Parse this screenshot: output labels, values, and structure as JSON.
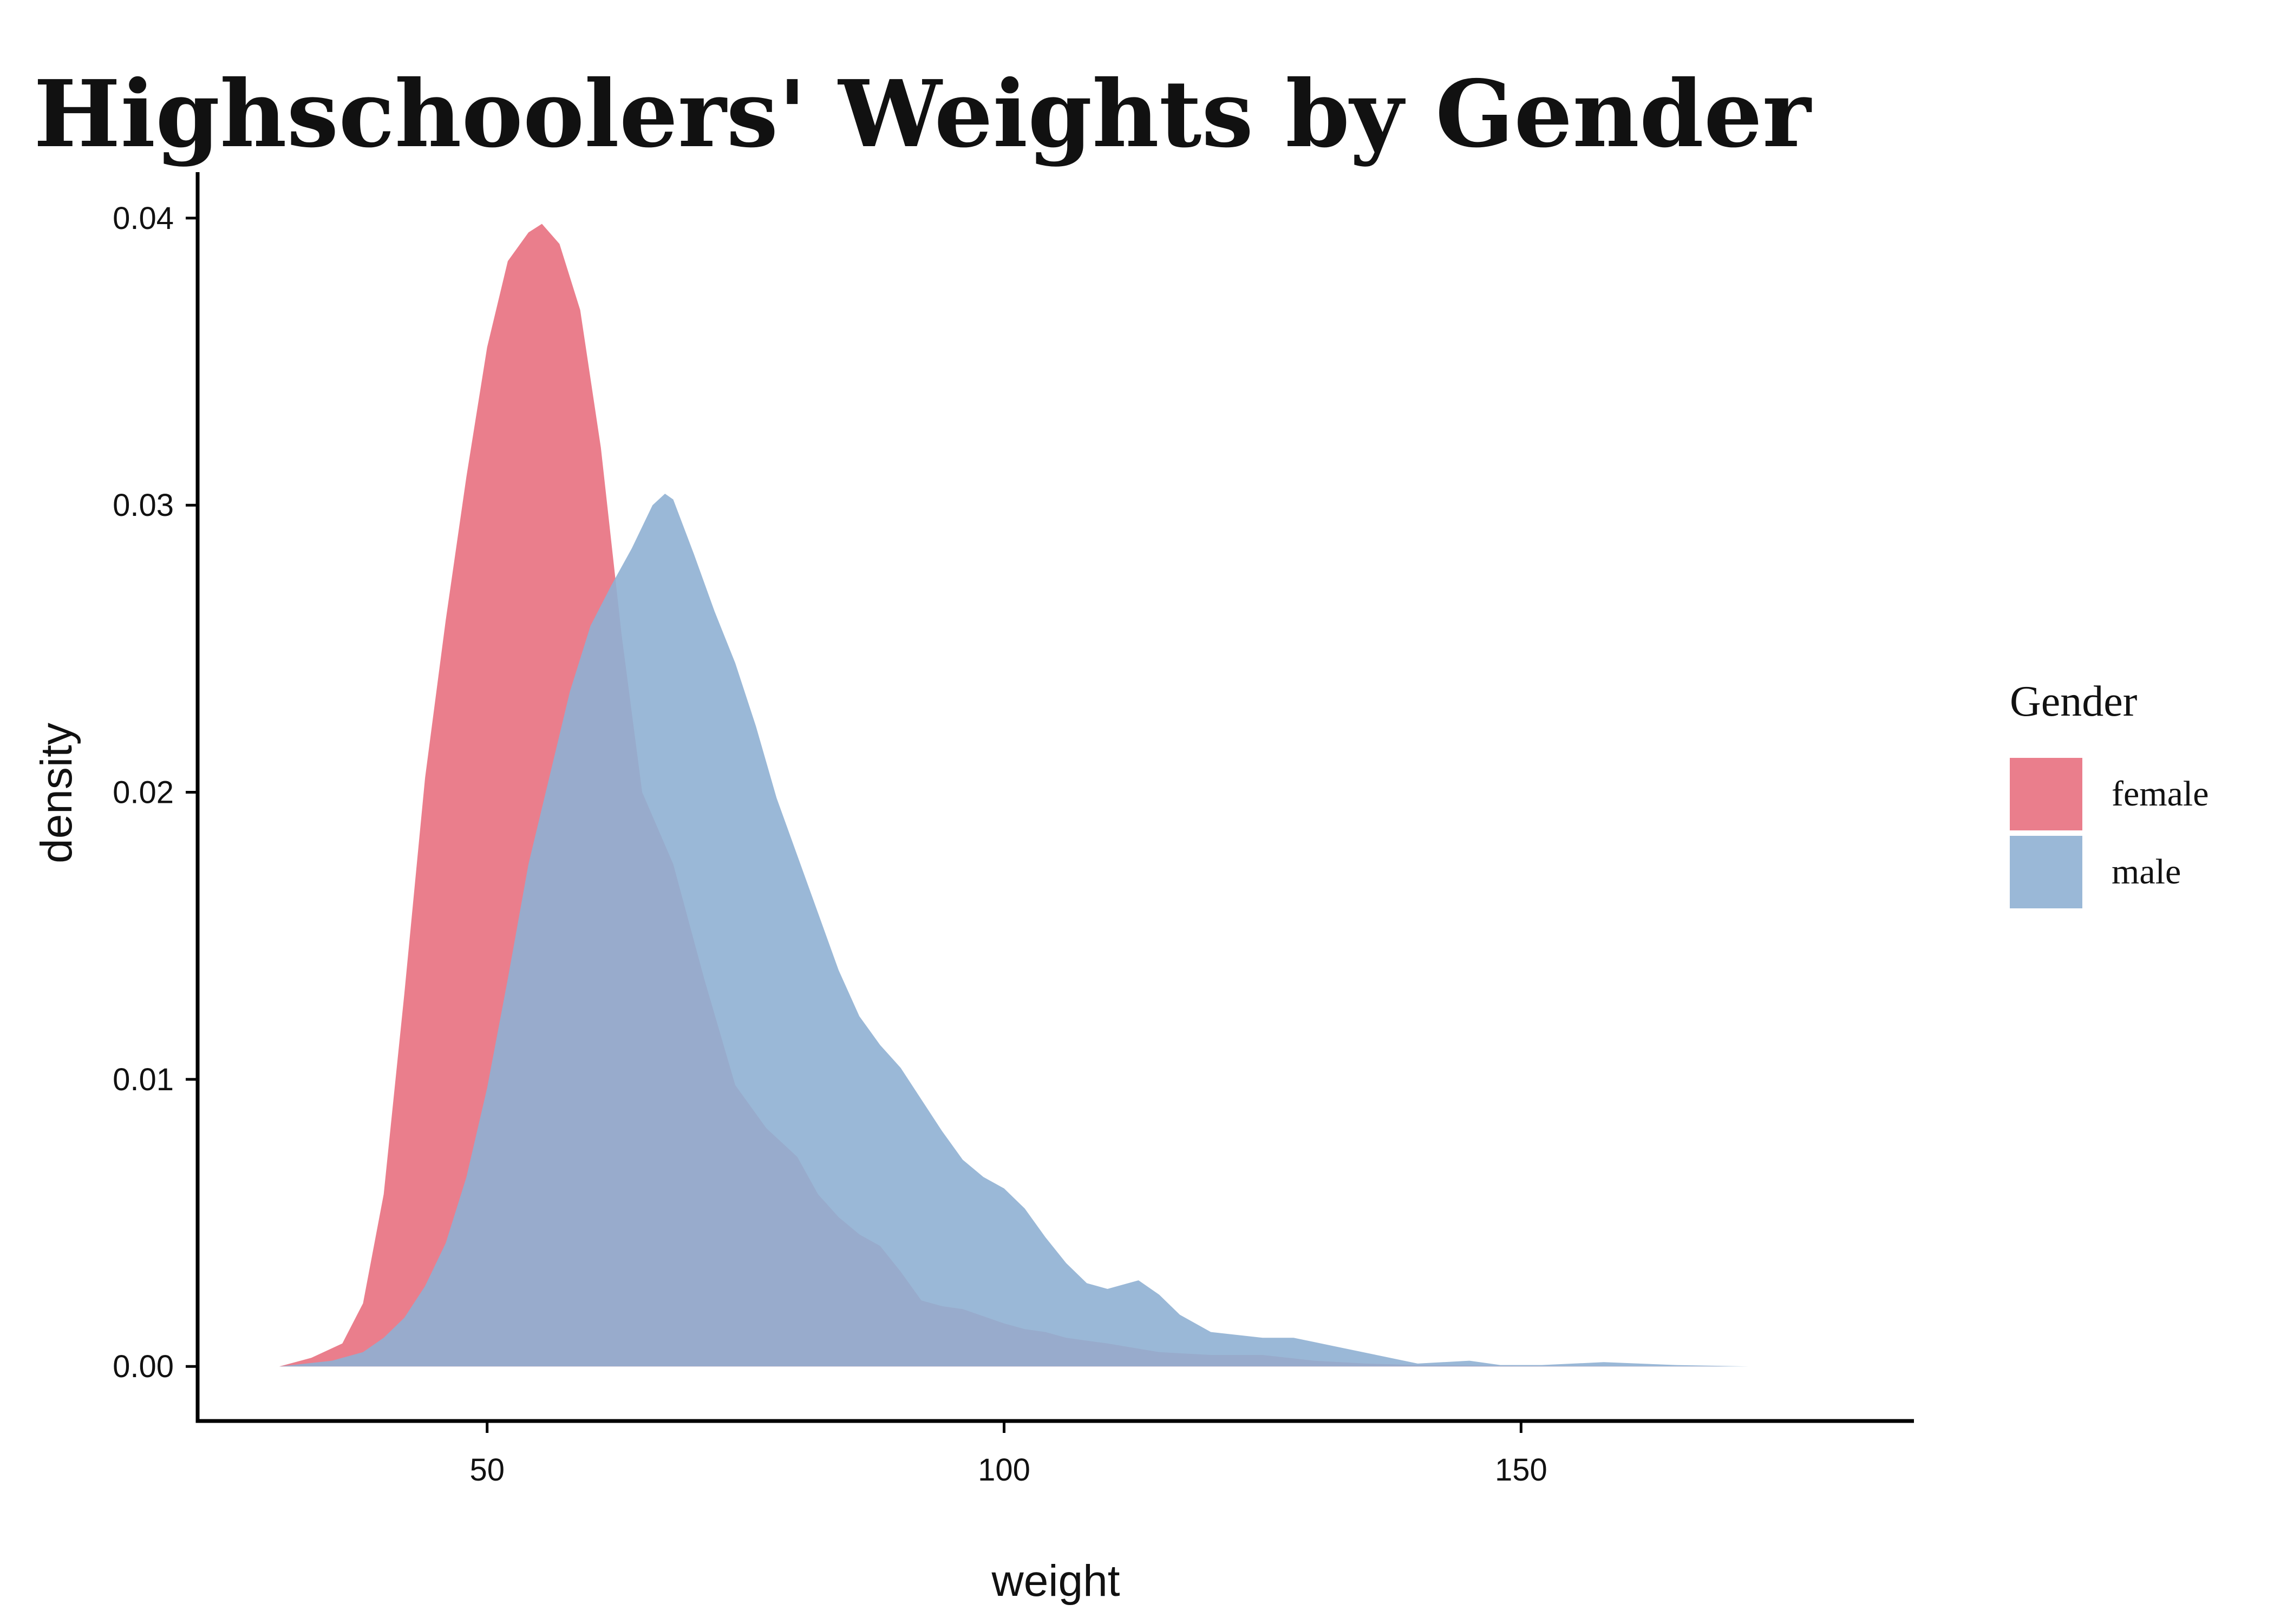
{
  "chart_data": {
    "type": "area",
    "subtype": "density",
    "title": "Highschoolers' Weights by Gender",
    "xlabel": "weight",
    "ylabel": "density",
    "xlim": [
      22,
      188
    ],
    "ylim": [
      -0.0019,
      0.0416
    ],
    "x_ticks": [
      50,
      100,
      150
    ],
    "y_ticks": [
      0.0,
      0.01,
      0.02,
      0.03,
      0.04
    ],
    "x_tick_labels": [
      "50",
      "100",
      "150"
    ],
    "y_tick_labels": [
      "0.00",
      "0.01",
      "0.02",
      "0.03",
      "0.04"
    ],
    "grid": false,
    "legend": {
      "title": "Gender",
      "position": "right"
    },
    "series": [
      {
        "name": "female",
        "color": "#E8707F",
        "opacity": 0.9,
        "x": [
          29.9,
          33,
          36,
          38,
          40,
          42,
          44,
          46,
          48,
          50,
          52,
          54,
          55.3,
          57,
          59,
          61,
          63,
          65,
          68,
          71,
          74,
          77,
          80,
          82,
          84,
          86,
          88,
          90,
          92,
          94,
          96,
          100,
          102,
          104,
          106,
          110,
          115,
          120,
          125,
          130,
          135,
          140,
          150,
          160,
          170,
          180.2
        ],
        "y": [
          0,
          0.0003,
          0.0008,
          0.0022,
          0.006,
          0.013,
          0.0205,
          0.026,
          0.031,
          0.0355,
          0.0385,
          0.0395,
          0.0398,
          0.0391,
          0.0368,
          0.032,
          0.0255,
          0.02,
          0.0175,
          0.0135,
          0.0098,
          0.0083,
          0.0073,
          0.006,
          0.0052,
          0.0046,
          0.0042,
          0.0033,
          0.0023,
          0.0021,
          0.002,
          0.0015,
          0.0013,
          0.0012,
          0.001,
          0.0008,
          0.0005,
          0.0004,
          0.0004,
          0.0002,
          0.0001,
          5e-05,
          2e-05,
          1e-05,
          0,
          0
        ]
      },
      {
        "name": "male",
        "color": "#8FB0D3",
        "opacity": 0.9,
        "x": [
          29.9,
          35,
          38,
          40,
          42,
          44,
          46,
          48,
          50,
          52,
          54,
          56,
          58,
          60,
          62,
          64,
          66,
          67.2,
          68,
          70,
          72,
          74,
          76,
          78,
          80,
          82,
          84,
          86,
          88,
          90,
          92,
          94,
          96,
          98,
          100,
          102,
          104,
          106,
          108,
          110,
          113,
          115,
          117,
          120,
          125,
          128,
          132,
          136,
          140,
          145,
          148,
          152,
          158,
          165,
          172,
          180.2
        ],
        "y": [
          0,
          0.0002,
          0.0005,
          0.001,
          0.0017,
          0.0028,
          0.0043,
          0.0066,
          0.0097,
          0.0135,
          0.0175,
          0.0205,
          0.0235,
          0.0258,
          0.0272,
          0.0285,
          0.03,
          0.0304,
          0.0302,
          0.0283,
          0.0263,
          0.0245,
          0.0223,
          0.0198,
          0.0178,
          0.0158,
          0.0138,
          0.0122,
          0.0112,
          0.0104,
          0.0093,
          0.0082,
          0.0072,
          0.0066,
          0.0062,
          0.0055,
          0.0045,
          0.0036,
          0.0029,
          0.0027,
          0.003,
          0.0025,
          0.0018,
          0.0012,
          0.001,
          0.001,
          0.0007,
          0.0004,
          0.0001,
          0.0002,
          5e-05,
          5e-05,
          0.00015,
          5e-05,
          0,
          0
        ]
      }
    ]
  }
}
